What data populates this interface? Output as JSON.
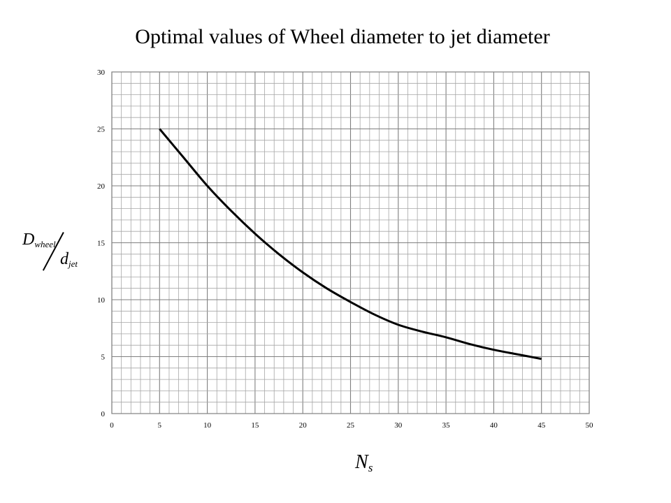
{
  "chart_data": {
    "type": "line",
    "title": "Optimal values of Wheel diameter to jet diameter",
    "xlabel": "Ns",
    "xlabel_main": "N",
    "xlabel_sub": "s",
    "ylabel": "Dwheel / djet",
    "ylabel_num_main": "D",
    "ylabel_num_sub": "wheel",
    "ylabel_den_main": "d",
    "ylabel_den_sub": "jet",
    "xlim": [
      0,
      50
    ],
    "ylim": [
      0,
      30
    ],
    "x_ticks": [
      0,
      5,
      10,
      15,
      20,
      25,
      30,
      35,
      40,
      45,
      50
    ],
    "y_ticks": [
      0,
      5,
      10,
      15,
      20,
      25,
      30
    ],
    "grid": true,
    "minor_grid_x_step": 1,
    "minor_grid_y_step": 1,
    "series": [
      {
        "x": [
          5,
          7.5,
          10,
          12.5,
          15,
          17.5,
          20,
          22.5,
          25,
          27.5,
          30,
          32.5,
          35,
          37.5,
          40,
          42.5,
          45
        ],
        "y": [
          25.0,
          22.5,
          20.0,
          17.8,
          15.8,
          14.0,
          12.4,
          11.0,
          9.8,
          8.7,
          7.8,
          7.2,
          6.7,
          6.1,
          5.6,
          5.2,
          4.8
        ]
      }
    ]
  },
  "colors": {
    "line": "#000000",
    "minor_grid": "#a6a6a6",
    "major_grid": "#7f7f7f",
    "axis": "#808080"
  }
}
